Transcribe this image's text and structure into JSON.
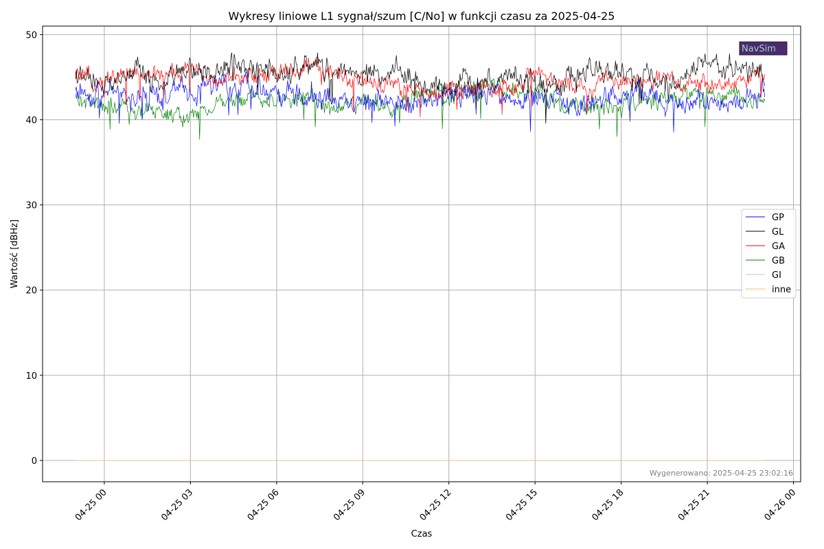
{
  "chart_data": {
    "type": "line",
    "title": "Wykresy liniowe L1 sygnał/szum [C/No] w funkcji czasu za 2025-04-25",
    "xlabel": "Czas",
    "ylabel": "Wartość [dBHz]",
    "x_ticks": [
      "04-25 00",
      "04-25 03",
      "04-25 06",
      "04-25 09",
      "04-25 12",
      "04-25 15",
      "04-25 18",
      "04-25 21",
      "04-26 00"
    ],
    "y_ticks": [
      "0",
      "10",
      "20",
      "30",
      "40",
      "50"
    ],
    "ylim": [
      -2.5,
      51
    ],
    "x_hours": [
      -1,
      0,
      1,
      2,
      3,
      4,
      5,
      6,
      7,
      8,
      9,
      10,
      11,
      12,
      13,
      14,
      15,
      16,
      17,
      18,
      19,
      20,
      21,
      22,
      23
    ],
    "grid": true,
    "legend_placement": "right",
    "series": [
      {
        "name": "GP",
        "color": "#0000ff",
        "values": [
          43.5,
          43.0,
          42.5,
          43.0,
          43.5,
          44.0,
          44.0,
          43.5,
          43.0,
          42.5,
          42.5,
          42.0,
          42.0,
          43.0,
          43.0,
          42.5,
          42.0,
          42.0,
          42.0,
          43.0,
          42.5,
          42.0,
          42.0,
          42.0,
          43.0
        ]
      },
      {
        "name": "GL",
        "color": "#000000",
        "values": [
          45.0,
          44.0,
          45.5,
          44.0,
          46.0,
          46.0,
          47.0,
          45.0,
          46.5,
          46.0,
          45.0,
          46.0,
          44.5,
          44.0,
          44.0,
          45.5,
          44.0,
          44.5,
          45.5,
          45.5,
          45.0,
          44.5,
          47.0,
          46.0,
          46.0
        ]
      },
      {
        "name": "GA",
        "color": "#ff0000",
        "values": [
          45.0,
          44.5,
          45.5,
          45.0,
          46.0,
          45.0,
          45.0,
          45.0,
          46.5,
          45.5,
          44.5,
          44.0,
          43.0,
          43.5,
          43.5,
          44.0,
          45.0,
          44.5,
          44.0,
          45.0,
          44.5,
          44.5,
          44.0,
          44.5,
          45.0
        ]
      },
      {
        "name": "GB",
        "color": "#008000",
        "values": [
          42.5,
          41.5,
          41.0,
          41.0,
          40.5,
          42.0,
          42.5,
          42.0,
          42.5,
          41.5,
          42.0,
          41.5,
          42.5,
          43.0,
          43.5,
          43.5,
          43.0,
          41.5,
          41.5,
          42.0,
          42.5,
          42.5,
          43.0,
          42.5,
          42.5
        ]
      },
      {
        "name": "GI",
        "color": "#a6cee3",
        "values": [
          0,
          0,
          0,
          0,
          0,
          0,
          0,
          0,
          0,
          0,
          0,
          0,
          0,
          0,
          0,
          0,
          0,
          0,
          0,
          0,
          0,
          0,
          0,
          0,
          0
        ]
      },
      {
        "name": "inne",
        "color": "#fdbf6f",
        "values": [
          0,
          0,
          0,
          0,
          0,
          0,
          0,
          0,
          0,
          0,
          0,
          0,
          0,
          0,
          0,
          0,
          0,
          0,
          0,
          0,
          0,
          0,
          0,
          0,
          0
        ]
      }
    ],
    "footer": "Wygenerowano: 2025-04-25 23:02:16",
    "logo_text": "NavSim"
  }
}
